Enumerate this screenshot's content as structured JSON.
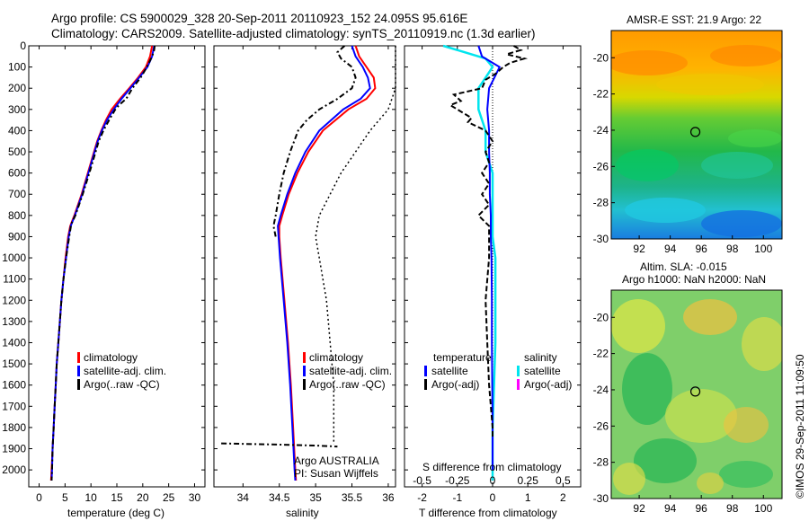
{
  "header": {
    "line1": "Argo profile: CS 5900029_328 20-Sep-2011 20110923_152 24.095S 95.616E",
    "line2": "Climatology: CARS2009. Satellite-adjusted climatology: synTS_20110919.nc (1.3d earlier)"
  },
  "colors": {
    "climatology": "#ff0000",
    "satellite": "#0000ff",
    "argo": "#000000",
    "satellite_salinity": "#00e5ee",
    "argo_salinity_adj": "#ff00ff"
  },
  "chart_data": [
    {
      "type": "line",
      "xlabel": "temperature (deg C)",
      "xlim": [
        -2,
        32
      ],
      "xticks": [
        "0",
        "5",
        "10",
        "15",
        "20",
        "25",
        "30"
      ],
      "ylim": [
        0,
        2080
      ],
      "yticks": [
        "0",
        "100",
        "200",
        "300",
        "400",
        "500",
        "600",
        "700",
        "800",
        "900",
        "1000",
        "1100",
        "1200",
        "1300",
        "1400",
        "1500",
        "1600",
        "1700",
        "1800",
        "1900",
        "2000"
      ],
      "legend": [
        "climatology",
        "satellite-adj. clim.",
        "Argo(..raw -QC)"
      ],
      "legend_placement": "lower-center",
      "series": [
        {
          "name": "climatology",
          "depth": [
            0,
            50,
            100,
            150,
            200,
            250,
            300,
            350,
            400,
            450,
            500,
            600,
            700,
            800,
            850,
            900,
            1000,
            1100,
            1200,
            1300,
            1400,
            1500,
            1600,
            1700,
            1800,
            1900,
            2000,
            2050
          ],
          "values": [
            21.8,
            21.4,
            20.6,
            19.1,
            17.4,
            15.6,
            14.0,
            12.9,
            12.0,
            11.2,
            10.6,
            9.4,
            8.2,
            6.8,
            6.0,
            5.6,
            5.1,
            4.7,
            4.3,
            4.0,
            3.7,
            3.4,
            3.2,
            3.0,
            2.8,
            2.6,
            2.4,
            2.3
          ]
        },
        {
          "name": "satellite-adj. clim.",
          "depth": [
            0,
            50,
            100,
            150,
            200,
            250,
            300,
            350,
            400,
            450,
            500,
            600,
            700,
            800,
            850,
            900,
            1000,
            1100,
            1200,
            1300,
            1400,
            1500,
            1600,
            1700,
            1800,
            1900,
            2000,
            2050
          ],
          "values": [
            22.2,
            21.8,
            20.9,
            19.3,
            17.6,
            15.9,
            14.4,
            13.1,
            12.1,
            11.3,
            10.7,
            9.5,
            8.3,
            6.9,
            6.1,
            5.7,
            5.2,
            4.7,
            4.3,
            4.0,
            3.7,
            3.4,
            3.2,
            3.0,
            2.8,
            2.6,
            2.5,
            2.4
          ]
        },
        {
          "name": "Argo(..raw -QC)",
          "depth": [
            0,
            20,
            50,
            80,
            100,
            150,
            200,
            250,
            280,
            300,
            350,
            400,
            450,
            500,
            550,
            600,
            700,
            800,
            840,
            900,
            1000,
            1100,
            1200,
            1300,
            1400,
            1500,
            1600,
            1700,
            1800,
            1900,
            2000,
            2050
          ],
          "values": [
            22.3,
            22.2,
            21.8,
            21.2,
            20.8,
            19.6,
            18.0,
            16.8,
            15.4,
            14.7,
            13.5,
            12.4,
            11.5,
            10.9,
            10.3,
            9.7,
            8.4,
            7.0,
            6.2,
            5.8,
            5.2,
            4.7,
            4.3,
            4.0,
            3.7,
            3.4,
            3.2,
            3.0,
            2.8,
            2.6,
            2.5,
            2.4
          ]
        }
      ]
    },
    {
      "type": "line",
      "xlabel": "salinity",
      "xlim": [
        33.6,
        36.1
      ],
      "xticks": [
        "34",
        "34.5",
        "35",
        "35.5",
        "36"
      ],
      "ylim": [
        0,
        2080
      ],
      "legend": [
        "climatology",
        "satellite-adj. clim.",
        "Argo(..raw -QC)"
      ],
      "legend_placement": "lower-center",
      "annotations": [
        "Argo AUSTRALIA",
        "PI: Susan Wijffels"
      ],
      "series": [
        {
          "name": "climatology",
          "depth": [
            0,
            50,
            100,
            150,
            200,
            250,
            300,
            400,
            500,
            600,
            700,
            800,
            850,
            900,
            1000,
            1200,
            1400,
            1600,
            1800,
            2000,
            2050
          ],
          "values": [
            35.55,
            35.6,
            35.7,
            35.8,
            35.82,
            35.7,
            35.45,
            35.1,
            34.9,
            34.75,
            34.63,
            34.54,
            34.5,
            34.5,
            34.52,
            34.57,
            34.62,
            34.66,
            34.69,
            34.72,
            34.73
          ]
        },
        {
          "name": "satellite-adj. clim.",
          "depth": [
            0,
            50,
            100,
            150,
            200,
            250,
            300,
            400,
            500,
            600,
            700,
            800,
            850,
            900,
            1000,
            1200,
            1400,
            1600,
            1800,
            2000,
            2050
          ],
          "values": [
            35.5,
            35.55,
            35.65,
            35.72,
            35.75,
            35.62,
            35.38,
            35.05,
            34.86,
            34.72,
            34.61,
            34.52,
            34.48,
            34.49,
            34.51,
            34.56,
            34.61,
            34.65,
            34.68,
            34.71,
            34.72
          ]
        },
        {
          "name": "Argo(..raw -QC)",
          "depth": [
            0,
            30,
            60,
            100,
            150,
            200,
            250,
            300,
            350,
            400,
            500,
            600,
            700,
            800,
            850,
            900
          ],
          "values": [
            35.4,
            35.3,
            35.35,
            35.5,
            35.55,
            35.5,
            35.3,
            35.05,
            34.88,
            34.76,
            34.65,
            34.56,
            34.5,
            34.45,
            34.42,
            34.45
          ]
        },
        {
          "name": "Argo raw",
          "depth": [
            1875,
            1880,
            1885,
            1890
          ],
          "values": [
            33.7,
            34.4,
            35.0,
            35.3
          ]
        },
        {
          "name": "climatology bounds",
          "depth": [
            0,
            100,
            200,
            300,
            400,
            500,
            600,
            700,
            800,
            900,
            1000,
            1200,
            1400,
            1600,
            1800,
            1880
          ],
          "values": [
            36.1,
            36.1,
            36.1,
            36.0,
            35.75,
            35.55,
            35.35,
            35.2,
            35.05,
            35.0,
            35.05,
            35.15,
            35.2,
            35.25,
            35.25,
            35.25
          ]
        }
      ]
    },
    {
      "type": "line",
      "xlabel": "T difference from climatology",
      "x2label": "S difference from climatology",
      "xlim": [
        -2.5,
        2.5
      ],
      "xticks": [
        "-2",
        "-1",
        "0",
        "1",
        "2"
      ],
      "x2ticks": [
        "-0.5",
        "-0.25",
        "0",
        "0.25",
        "0.5"
      ],
      "ylim": [
        0,
        2080
      ],
      "legend_groups": [
        {
          "title": "temperature",
          "items": [
            "satellite",
            "Argo(-adj)"
          ]
        },
        {
          "title": "salinity",
          "items": [
            "satellite",
            "Argo(-adj)"
          ]
        }
      ],
      "series": [
        {
          "name": "temperature satellite",
          "depth": [
            0,
            50,
            100,
            150,
            200,
            300,
            400,
            500,
            600,
            700,
            800,
            900,
            1000,
            1200,
            1400,
            1600,
            1800,
            2000
          ],
          "values": [
            -0.4,
            -0.3,
            0.2,
            0.05,
            -0.1,
            -0.15,
            -0.1,
            -0.1,
            -0.08,
            -0.08,
            -0.05,
            -0.05,
            -0.03,
            -0.02,
            -0.02,
            -0.01,
            0,
            0
          ]
        },
        {
          "name": "temperature Argo(-adj)",
          "depth": [
            0,
            20,
            40,
            60,
            80,
            100,
            130,
            160,
            200,
            230,
            260,
            280,
            300,
            320,
            340,
            360,
            400,
            450,
            500,
            550,
            600,
            650,
            700,
            750,
            800,
            850,
            900,
            1000,
            1200,
            1400,
            1600,
            1800,
            1850
          ],
          "values": [
            0.6,
            0.8,
            0.4,
            0.9,
            0.5,
            0.3,
            0.1,
            -0.2,
            -0.3,
            -1.1,
            -0.9,
            -1.2,
            -1.0,
            -0.8,
            -0.6,
            -0.7,
            -0.2,
            0.0,
            -0.2,
            -0.1,
            -0.3,
            -0.1,
            -0.3,
            -0.1,
            -0.4,
            -0.1,
            -0.1,
            -0.1,
            -0.2,
            -0.15,
            -0.1,
            0.0,
            0.0
          ]
        },
        {
          "name": "salinity satellite",
          "depth": [
            0,
            30,
            60,
            100,
            150,
            200,
            300,
            400,
            500,
            600,
            700,
            800,
            900,
            1000,
            1200,
            1400,
            1600,
            1800,
            2000,
            2050
          ],
          "values": [
            -0.35,
            -0.2,
            -0.05,
            0.0,
            -0.05,
            -0.1,
            -0.1,
            -0.05,
            -0.05,
            0.0,
            0.0,
            0.0,
            0.0,
            0.02,
            0.02,
            0.02,
            0.01,
            0.0,
            0.0,
            0.0
          ]
        },
        {
          "name": "salinity Argo(-adj)",
          "depth": [],
          "values": []
        }
      ]
    }
  ],
  "maps": [
    {
      "title": "AMSR-E SST: 21.9 Argo: 22",
      "lon_ticks": [
        "92",
        "94",
        "96",
        "98",
        "100"
      ],
      "lat_ticks": [
        "-20",
        "-22",
        "-24",
        "-26",
        "-28",
        "-30"
      ],
      "marker": {
        "lon": 95.616,
        "lat": -24.095
      }
    },
    {
      "title_line1": "Altim. SLA: -0.015",
      "title_line2": "Argo h1000: NaN h2000: NaN",
      "lon_ticks": [
        "92",
        "94",
        "96",
        "98",
        "100"
      ],
      "lat_ticks": [
        "-20",
        "-22",
        "-24",
        "-26",
        "-28",
        "-30"
      ],
      "marker": {
        "lon": 95.616,
        "lat": -24.095
      }
    }
  ],
  "credit": "©IMOS 29-Sep-2011 11:09:50"
}
